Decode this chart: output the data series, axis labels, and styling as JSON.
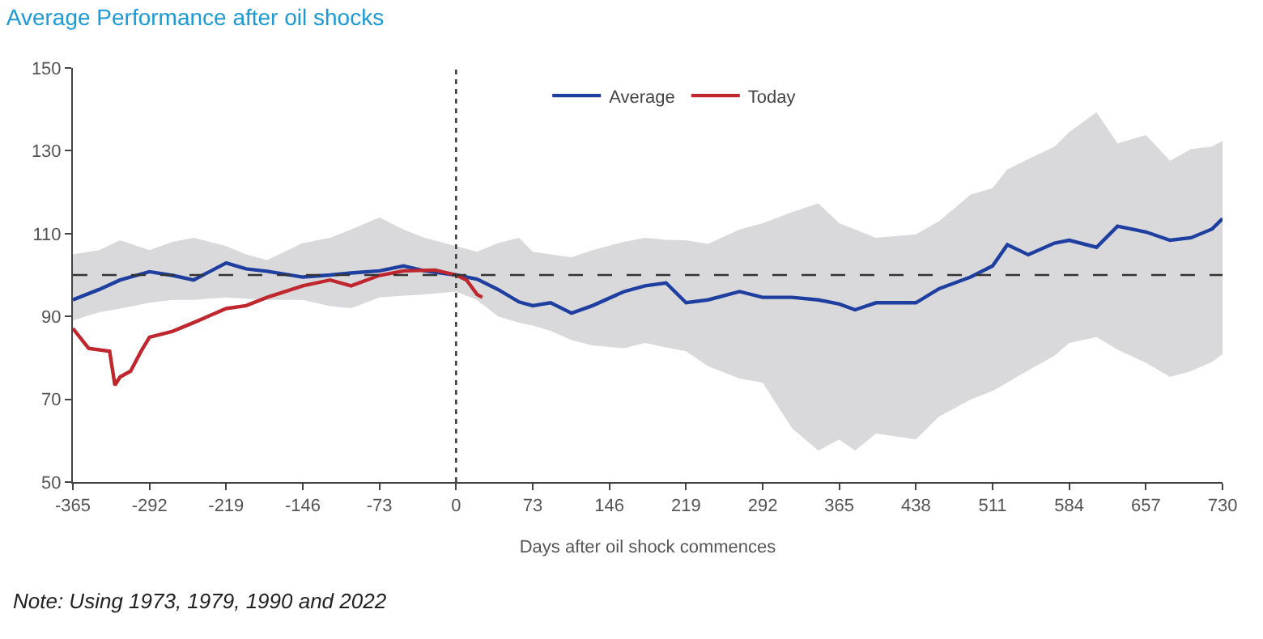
{
  "chart_data": {
    "type": "line",
    "title": "Average Performance after oil shocks",
    "xlabel": "Days after oil shock commences",
    "annotations": [
      "Note: Using 1973, 1979, 1990 and 2022"
    ],
    "xlim": [
      -365,
      730
    ],
    "xticks": [
      -365,
      -292,
      -219,
      -146,
      -73,
      0,
      73,
      146,
      219,
      292,
      365,
      438,
      511,
      584,
      657,
      730
    ],
    "ylim": [
      50,
      150
    ],
    "yticks": [
      50,
      70,
      90,
      110,
      130,
      150
    ],
    "legend": "top",
    "marker": "none",
    "line_style": "solid",
    "ref_lines": [
      {
        "axis": "y",
        "value": 100,
        "label": null,
        "color": "#333333",
        "line_style": "dashed"
      },
      {
        "axis": "x",
        "value": 0,
        "label": null,
        "color": "#333333",
        "line_style": "dotted"
      }
    ],
    "series": [
      {
        "name": "Average",
        "color": "#1f3fa0",
        "x": [
          -365,
          -340,
          -320,
          -292,
          -270,
          -250,
          -219,
          -200,
          -180,
          -146,
          -120,
          -100,
          -73,
          -50,
          -30,
          0,
          20,
          40,
          60,
          73,
          90,
          110,
          130,
          160,
          180,
          200,
          219,
          240,
          270,
          292,
          320,
          345,
          365,
          380,
          400,
          438,
          460,
          490,
          511,
          525,
          545,
          570,
          584,
          610,
          630,
          657,
          680,
          700,
          720,
          730
        ],
        "values": [
          94,
          96.5,
          98.8,
          100.8,
          99.9,
          98.8,
          102.9,
          101.5,
          100.9,
          99.5,
          100,
          100.5,
          101,
          102.2,
          101,
          100,
          99,
          96.5,
          93.5,
          92.6,
          93.3,
          90.8,
          92.6,
          96,
          97.4,
          98.1,
          93.3,
          94,
          96,
          94.6,
          94.6,
          94,
          93,
          91.6,
          93.3,
          93.3,
          96.7,
          99.5,
          102.2,
          107.3,
          104.9,
          107.7,
          108.4,
          106.7,
          111.8,
          110.4,
          108.4,
          109,
          111.1,
          113.6
        ],
        "upper": [
          105,
          106,
          108.4,
          106,
          108,
          109,
          107,
          105,
          103.6,
          107.7,
          109,
          111,
          113.9,
          111,
          109,
          107,
          105.6,
          107.7,
          109,
          105.6,
          105,
          104.3,
          106,
          108,
          109,
          108.5,
          108.4,
          107.5,
          111,
          112.5,
          115.2,
          117.3,
          112.5,
          111,
          109,
          109.8,
          113,
          119.4,
          121,
          125.5,
          128,
          131,
          134.5,
          139.3,
          131.8,
          133.8,
          127.6,
          130.4,
          131,
          132.4
        ],
        "lower": [
          89,
          91,
          91.9,
          93.3,
          94,
          94,
          94.6,
          94.3,
          94,
          94,
          92.5,
          92,
          94.6,
          95,
          95.3,
          96,
          94,
          90,
          88.5,
          87.8,
          86.5,
          84.3,
          83,
          82.3,
          83.6,
          82.5,
          81.6,
          78,
          75,
          74,
          63,
          57.6,
          60.3,
          57.6,
          61.7,
          60.3,
          65.8,
          69.9,
          72,
          74,
          77,
          80.5,
          83.6,
          85,
          82,
          78.8,
          75.4,
          76.8,
          79,
          80.9
        ]
      },
      {
        "name": "Today",
        "color": "#c0262d",
        "x": [
          -365,
          -350,
          -330,
          -325,
          -320,
          -310,
          -300,
          -292,
          -270,
          -250,
          -219,
          -200,
          -180,
          -146,
          -120,
          -100,
          -73,
          -50,
          -20,
          0,
          10,
          20,
          25
        ],
        "values": [
          87.1,
          82.3,
          81.6,
          73.4,
          75.4,
          76.8,
          81.6,
          85,
          86.4,
          88.5,
          91.9,
          92.6,
          94.6,
          97.4,
          98.8,
          97.4,
          99.9,
          101,
          101.2,
          100,
          98.8,
          95.3,
          94.6
        ]
      }
    ]
  }
}
